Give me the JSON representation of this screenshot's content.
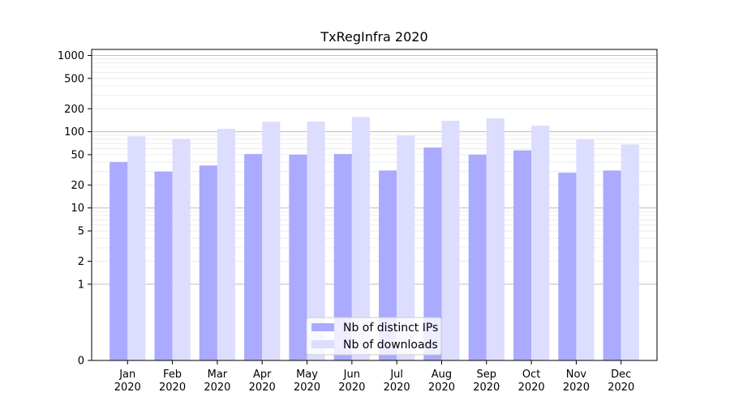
{
  "chart_data": {
    "type": "bar",
    "title": "TxRegInfra 2020",
    "xlabel": "",
    "ylabel": "",
    "yscale": "symlog",
    "ylim": [
      0,
      1200
    ],
    "y_ticks": [
      0,
      1,
      2,
      5,
      10,
      20,
      50,
      100,
      200,
      500,
      1000
    ],
    "y_tick_labels": [
      "0",
      "1",
      "2",
      "5",
      "10",
      "20",
      "50",
      "100",
      "200",
      "500",
      "1000"
    ],
    "grid": true,
    "legend_position": "bottom-center",
    "categories": [
      [
        "Jan",
        "2020"
      ],
      [
        "Feb",
        "2020"
      ],
      [
        "Mar",
        "2020"
      ],
      [
        "Apr",
        "2020"
      ],
      [
        "May",
        "2020"
      ],
      [
        "Jun",
        "2020"
      ],
      [
        "Jul",
        "2020"
      ],
      [
        "Aug",
        "2020"
      ],
      [
        "Sep",
        "2020"
      ],
      [
        "Oct",
        "2020"
      ],
      [
        "Nov",
        "2020"
      ],
      [
        "Dec",
        "2020"
      ]
    ],
    "series": [
      {
        "name": "Nb of distinct IPs",
        "color": "#aaaaff",
        "values": [
          40,
          30,
          36,
          51,
          50,
          51,
          31,
          62,
          50,
          57,
          29,
          31
        ]
      },
      {
        "name": "Nb of downloads",
        "color": "#ddddff",
        "values": [
          87,
          80,
          109,
          135,
          136,
          156,
          89,
          139,
          150,
          120,
          79,
          68
        ]
      }
    ]
  }
}
